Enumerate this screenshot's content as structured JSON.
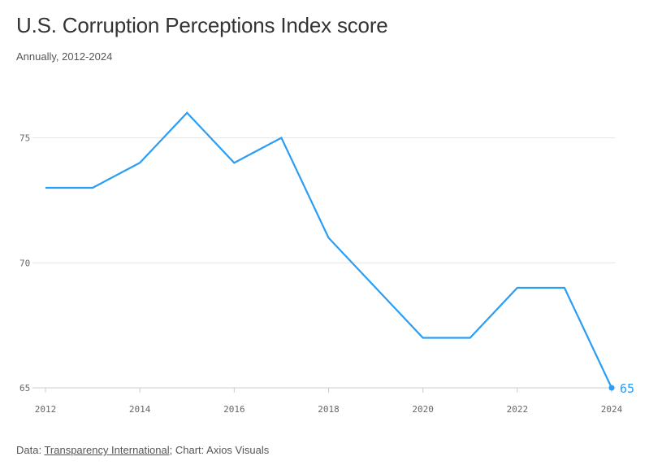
{
  "chart_data": {
    "type": "line",
    "title": "U.S. Corruption Perceptions Index score",
    "subtitle": "Annually, 2012-2024",
    "x": [
      2012,
      2013,
      2014,
      2015,
      2016,
      2017,
      2018,
      2019,
      2020,
      2021,
      2022,
      2023,
      2024
    ],
    "series": [
      {
        "values": [
          73,
          73,
          74,
          76,
          74,
          75,
          71,
          69,
          67,
          67,
          69,
          69,
          65
        ]
      }
    ],
    "xticks": [
      "2012",
      "2014",
      "2016",
      "2018",
      "2020",
      "2022",
      "2024"
    ],
    "yticks": [
      "65",
      "70",
      "75"
    ],
    "xlim": [
      2012,
      2024
    ],
    "ylim": [
      65,
      77
    ],
    "grid": true,
    "color": "#2a9df4",
    "end_label": "65"
  },
  "footer": {
    "prefix": "Data: ",
    "source": "Transparency International",
    "suffix": "; Chart: Axios Visuals"
  }
}
